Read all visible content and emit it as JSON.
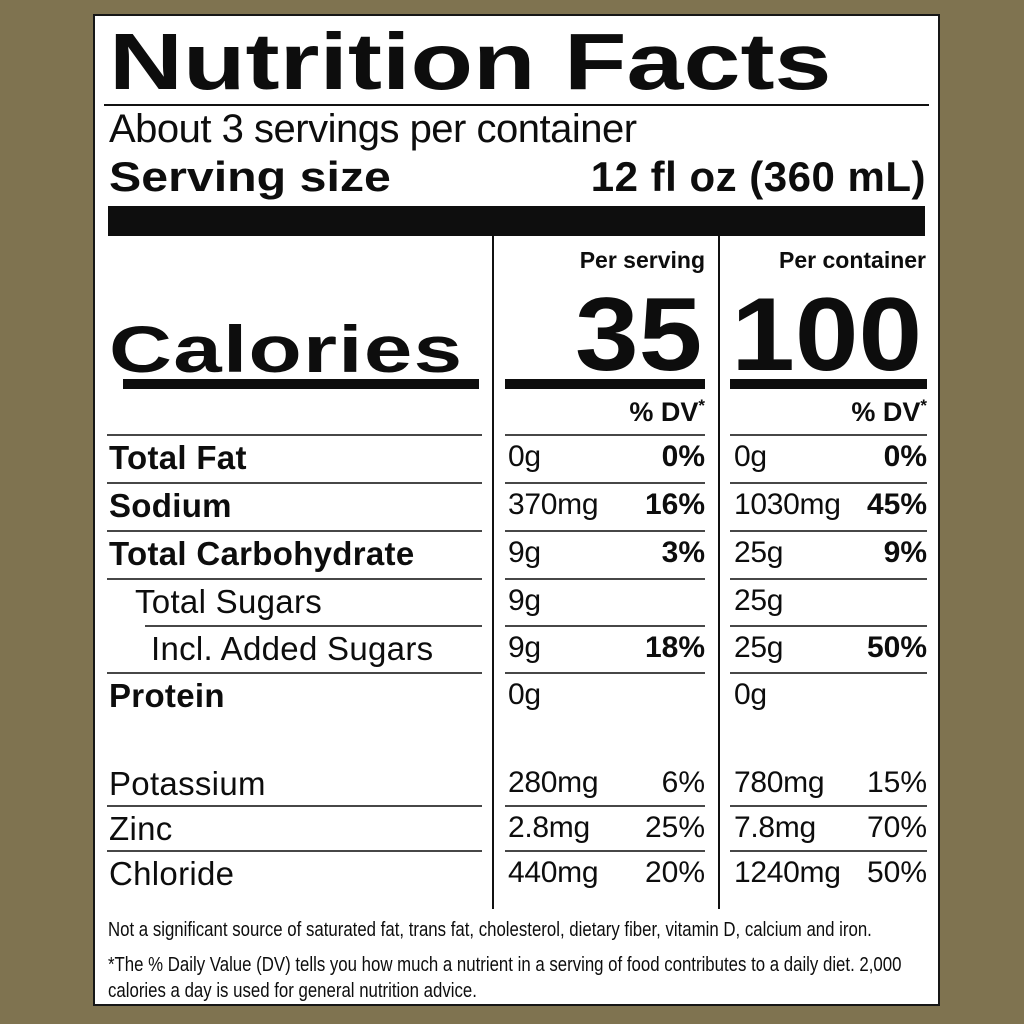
{
  "label": {
    "title": "Nutrition Facts",
    "servings_per_container": "About 3 servings per container",
    "serving_size_label": "Serving size",
    "serving_size_value": "12 fl oz (360 mL)",
    "columns": {
      "per_serving": "Per serving",
      "per_container": "Per container"
    },
    "calories": {
      "label": "Calories",
      "per_serving": "35",
      "per_container": "100"
    },
    "dv_header": "% DV",
    "dv_asterisk": "*",
    "rows": [
      {
        "name": "Total Fat",
        "ps_amount": "0g",
        "ps_dv": "0%",
        "pc_amount": "0g",
        "pc_dv": "0%"
      },
      {
        "name": "Sodium",
        "ps_amount": "370mg",
        "ps_dv": "16%",
        "pc_amount": "1030mg",
        "pc_dv": "45%"
      },
      {
        "name": "Total Carbohydrate",
        "ps_amount": "9g",
        "ps_dv": "3%",
        "pc_amount": "25g",
        "pc_dv": "9%"
      },
      {
        "name": "Total Sugars",
        "ps_amount": "9g",
        "ps_dv": "",
        "pc_amount": "25g",
        "pc_dv": ""
      },
      {
        "name": "Incl. Added Sugars",
        "ps_amount": "9g",
        "ps_dv": "18%",
        "pc_amount": "25g",
        "pc_dv": "50%"
      },
      {
        "name": "Protein",
        "ps_amount": "0g",
        "ps_dv": "",
        "pc_amount": "0g",
        "pc_dv": ""
      },
      {
        "name": "Potassium",
        "ps_amount": "280mg",
        "ps_dv": "6%",
        "pc_amount": "780mg",
        "pc_dv": "15%"
      },
      {
        "name": "Zinc",
        "ps_amount": "2.8mg",
        "ps_dv": "25%",
        "pc_amount": "7.8mg",
        "pc_dv": "70%"
      },
      {
        "name": "Chloride",
        "ps_amount": "440mg",
        "ps_dv": "20%",
        "pc_amount": "1240mg",
        "pc_dv": "50%"
      }
    ],
    "footnotes": {
      "not_significant": "Not a significant source of saturated fat, trans fat, cholesterol, dietary fiber, vitamin D, calcium and iron.",
      "dv_line1": "*The % Daily Value (DV) tells you how much a nutrient in a serving of food contributes to a daily diet. 2,000",
      "dv_line2": "calories a day is used for general nutrition advice."
    },
    "colors": {
      "background": "#7f7350",
      "label_bg": "#ffffff",
      "text": "#0d0d0d"
    }
  }
}
